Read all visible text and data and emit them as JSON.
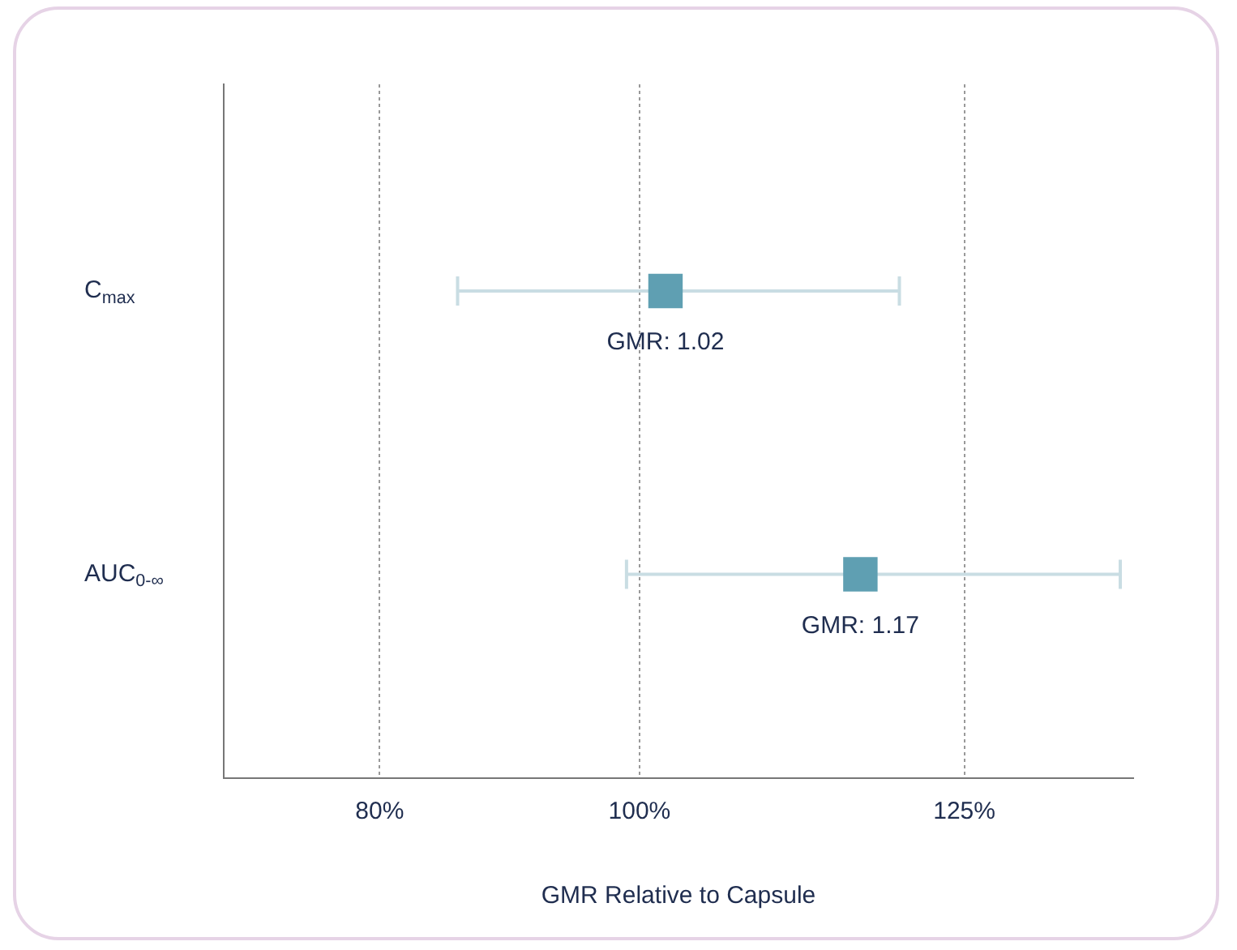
{
  "chart_data": {
    "type": "scatter",
    "orientation": "horizontal",
    "categories": [
      "C$_{max}$",
      "AUC$_{0-∞}$"
    ],
    "values": [
      1.02,
      1.17
    ],
    "errors": [
      [
        0.86,
        1.2
      ],
      [
        0.99,
        1.37
      ]
    ],
    "value_labels": [
      "GMR: 1.02",
      "GMR: 1.17"
    ],
    "color": "#5f9fb2",
    "marker": "square",
    "xlabel": "GMR Relative to Capsule",
    "xlim": [
      0.68,
      1.38
    ],
    "xticks": [
      {
        "value": 0.8,
        "label": "80%"
      },
      {
        "value": 1,
        "label": "100%"
      },
      {
        "value": 1.25,
        "label": "125%"
      }
    ],
    "grid": "x",
    "legend": false
  }
}
